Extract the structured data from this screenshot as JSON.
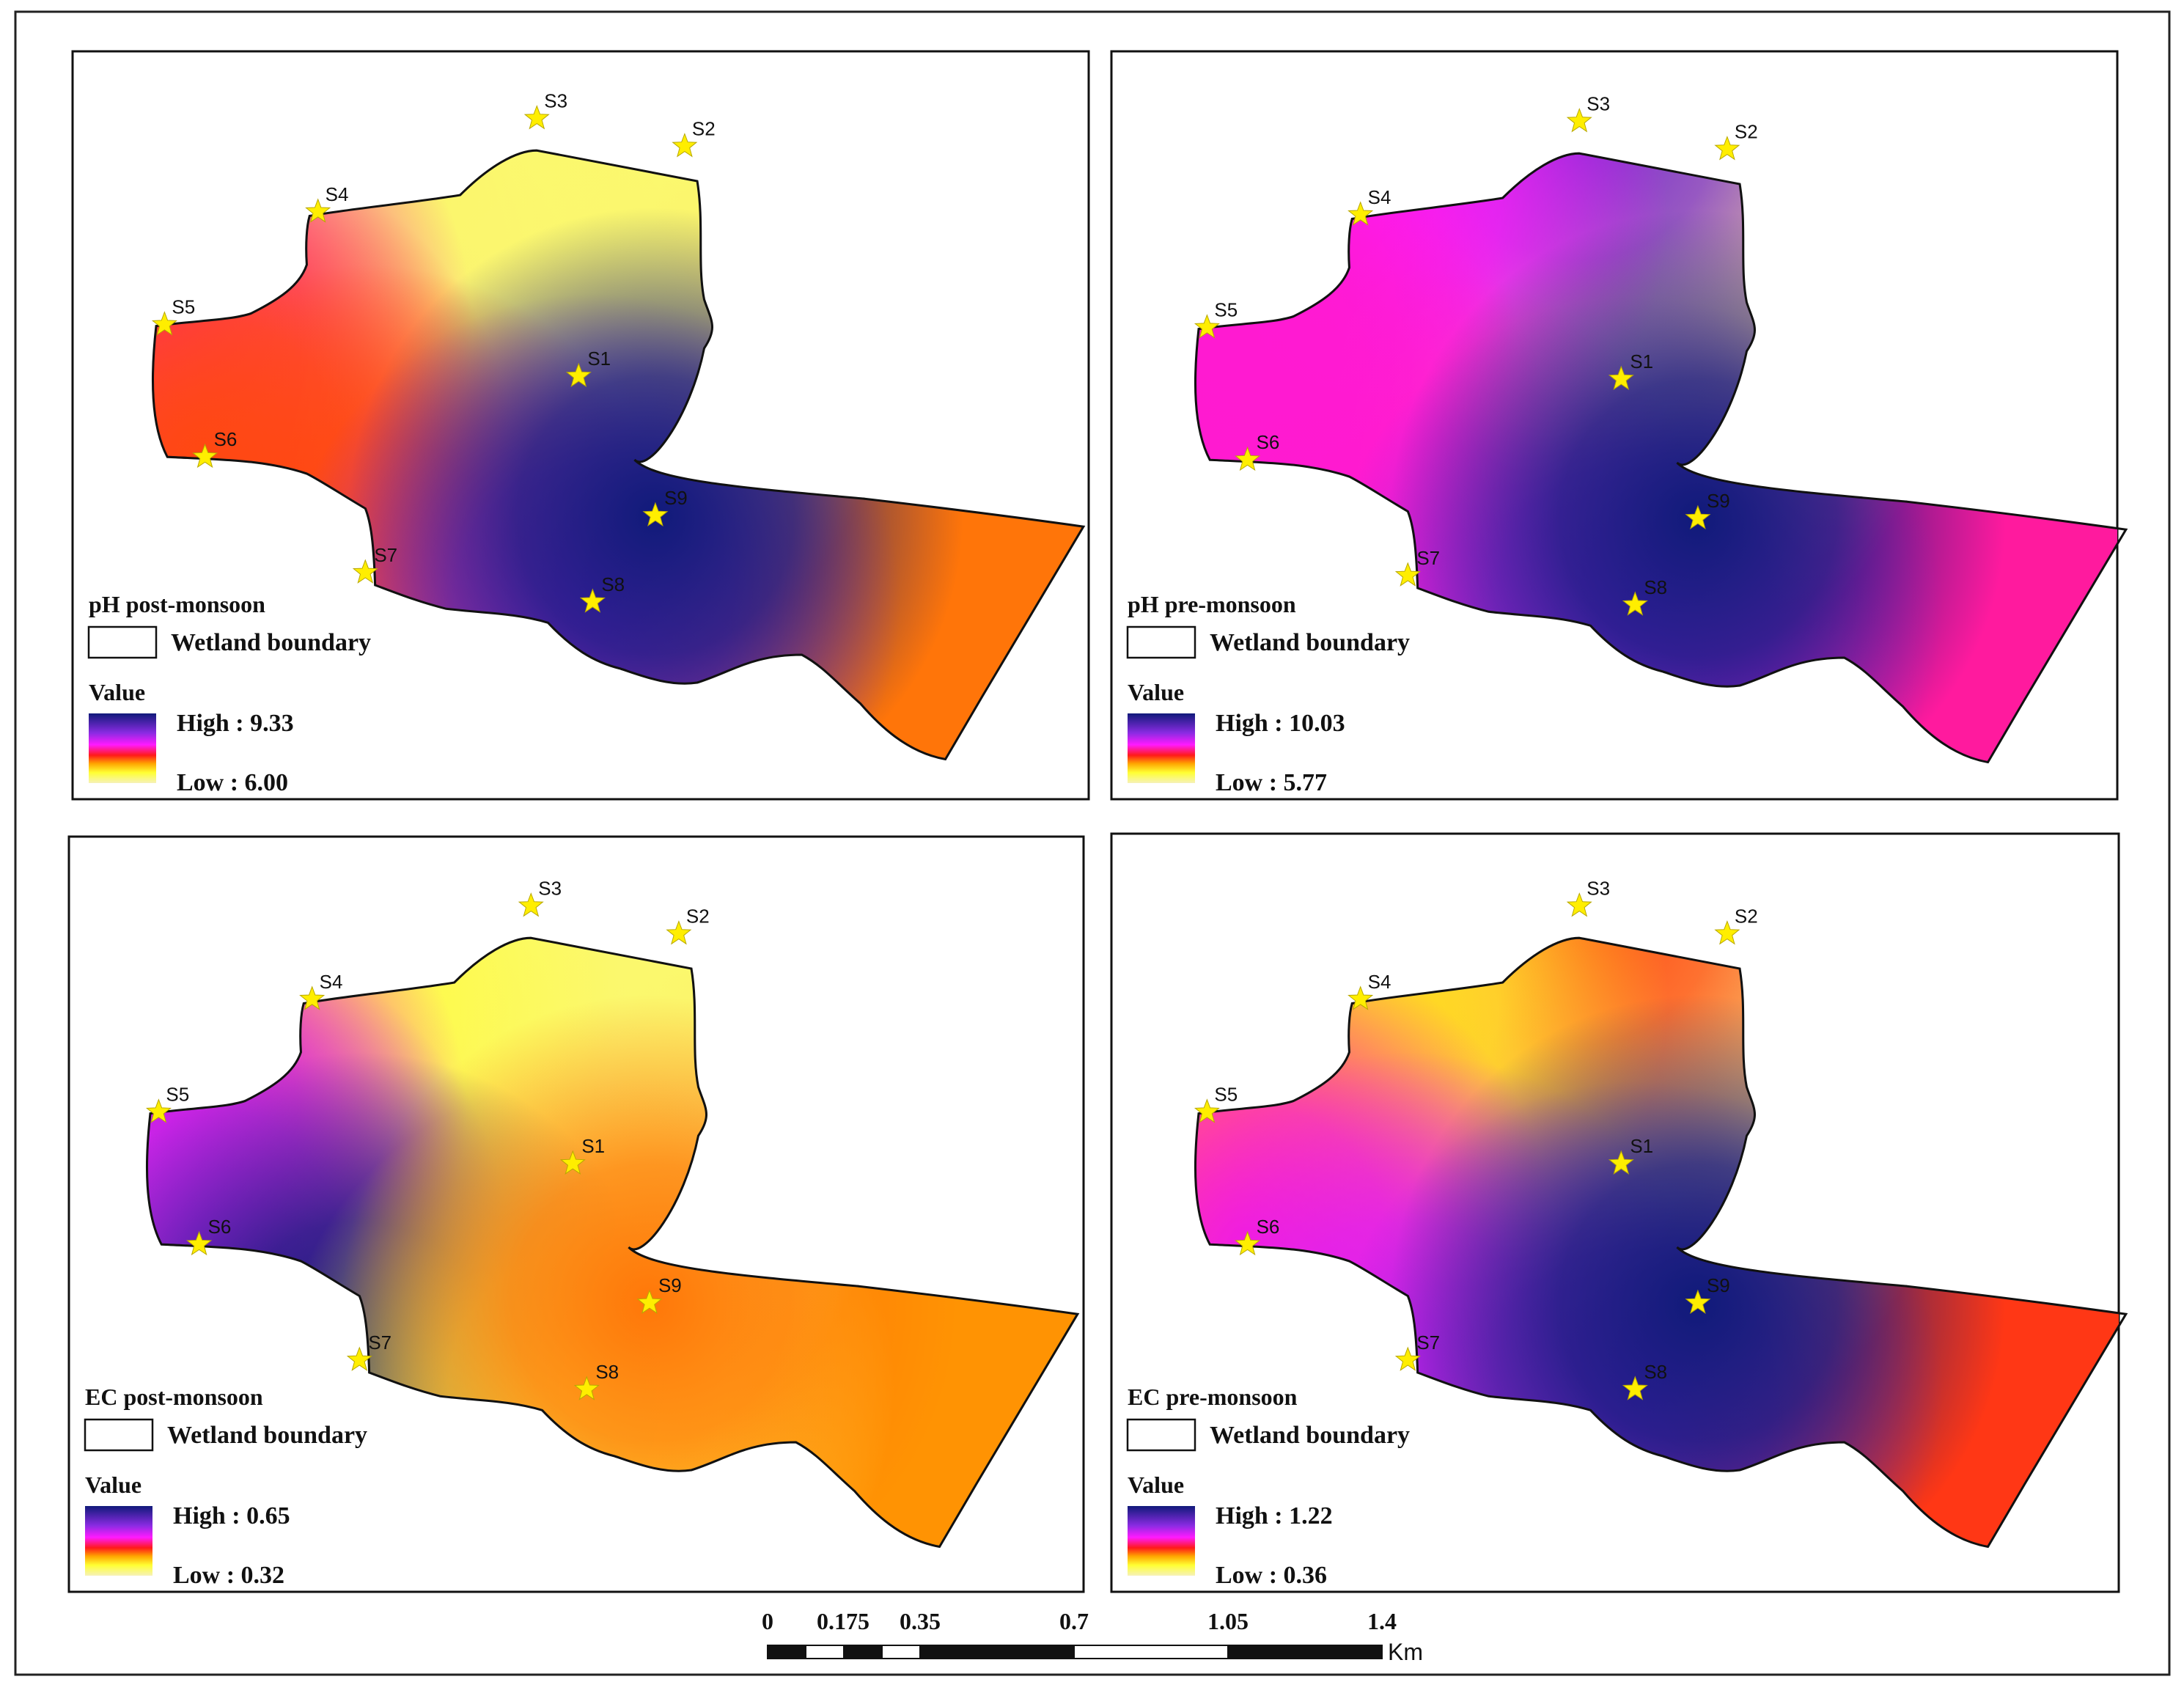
{
  "scalebar": {
    "ticks": [
      "0",
      "0.175",
      "0.35",
      "0.7",
      "1.05",
      "1.4"
    ],
    "unit": "Km"
  },
  "boundary_legend_label": "Wetland boundary",
  "value_label": "Value",
  "palette": {
    "high": "#101a7a",
    "violet": "#8a2be2",
    "magenta": "#ff1aff",
    "red": "#ff1a1a",
    "orange": "#ffa500",
    "yellow": "#ffff33",
    "pale": "#f6f2b8",
    "star": "#ffee00"
  },
  "maps": [
    {
      "title": "pH post-monsoon",
      "high_text": "High : 9.33",
      "low_text": "Low : 6.00",
      "high": 9.33,
      "low": 6.0,
      "sites": [
        {
          "id": "S1",
          "label": "S1",
          "level": 0.02
        },
        {
          "id": "S2",
          "label": "S2",
          "level": 0.1
        },
        {
          "id": "S3",
          "label": "S3",
          "level": 0.1
        },
        {
          "id": "S4",
          "label": "S4",
          "level": 0.1
        },
        {
          "id": "S5",
          "label": "S5",
          "level": 0.6
        },
        {
          "id": "S6",
          "label": "S6",
          "level": 0.45
        },
        {
          "id": "S7",
          "label": "S7",
          "level": 0.45
        },
        {
          "id": "S8",
          "label": "S8",
          "level": 0.8
        },
        {
          "id": "S9",
          "label": "S9",
          "level": 1.0
        }
      ]
    },
    {
      "title": "pH pre-monsoon",
      "high_text": "High : 10.03",
      "low_text": "Low : 5.77",
      "high": 10.03,
      "low": 5.77,
      "sites": [
        {
          "id": "S1",
          "label": "S1",
          "level": 0.05
        },
        {
          "id": "S2",
          "label": "S2",
          "level": 0.05
        },
        {
          "id": "S3",
          "label": "S3",
          "level": 0.85
        },
        {
          "id": "S4",
          "label": "S4",
          "level": 0.65
        },
        {
          "id": "S5",
          "label": "S5",
          "level": 0.62
        },
        {
          "id": "S6",
          "label": "S6",
          "level": 0.62
        },
        {
          "id": "S7",
          "label": "S7",
          "level": 0.62
        },
        {
          "id": "S8",
          "label": "S8",
          "level": 0.82
        },
        {
          "id": "S9",
          "label": "S9",
          "level": 1.0
        }
      ]
    },
    {
      "title": "EC post-monsoon",
      "high_text": "High : 0.65",
      "low_text": "Low : 0.32",
      "high": 0.65,
      "low": 0.32,
      "sites": [
        {
          "id": "S1",
          "label": "S1",
          "level": 0.05
        },
        {
          "id": "S2",
          "label": "S2",
          "level": 0.1
        },
        {
          "id": "S3",
          "label": "S3",
          "level": 0.1
        },
        {
          "id": "S4",
          "label": "S4",
          "level": 0.15
        },
        {
          "id": "S5",
          "label": "S5",
          "level": 0.62
        },
        {
          "id": "S6",
          "label": "S6",
          "level": 0.75
        },
        {
          "id": "S7",
          "label": "S7",
          "level": 1.0
        },
        {
          "id": "S8",
          "label": "S8",
          "level": 0.15
        },
        {
          "id": "S9",
          "label": "S9",
          "level": 0.4
        }
      ]
    },
    {
      "title": "EC pre-monsoon",
      "high_text": "High : 1.22",
      "low_text": "Low : 0.36",
      "high": 1.22,
      "low": 0.36,
      "sites": [
        {
          "id": "S1",
          "label": "S1",
          "level": 0.05
        },
        {
          "id": "S2",
          "label": "S2",
          "level": 0.05
        },
        {
          "id": "S3",
          "label": "S3",
          "level": 0.45
        },
        {
          "id": "S4",
          "label": "S4",
          "level": 0.2
        },
        {
          "id": "S5",
          "label": "S5",
          "level": 0.3
        },
        {
          "id": "S6",
          "label": "S6",
          "level": 0.62
        },
        {
          "id": "S7",
          "label": "S7",
          "level": 0.7
        },
        {
          "id": "S8",
          "label": "S8",
          "level": 0.85
        },
        {
          "id": "S9",
          "label": "S9",
          "level": 1.0
        }
      ]
    }
  ]
}
